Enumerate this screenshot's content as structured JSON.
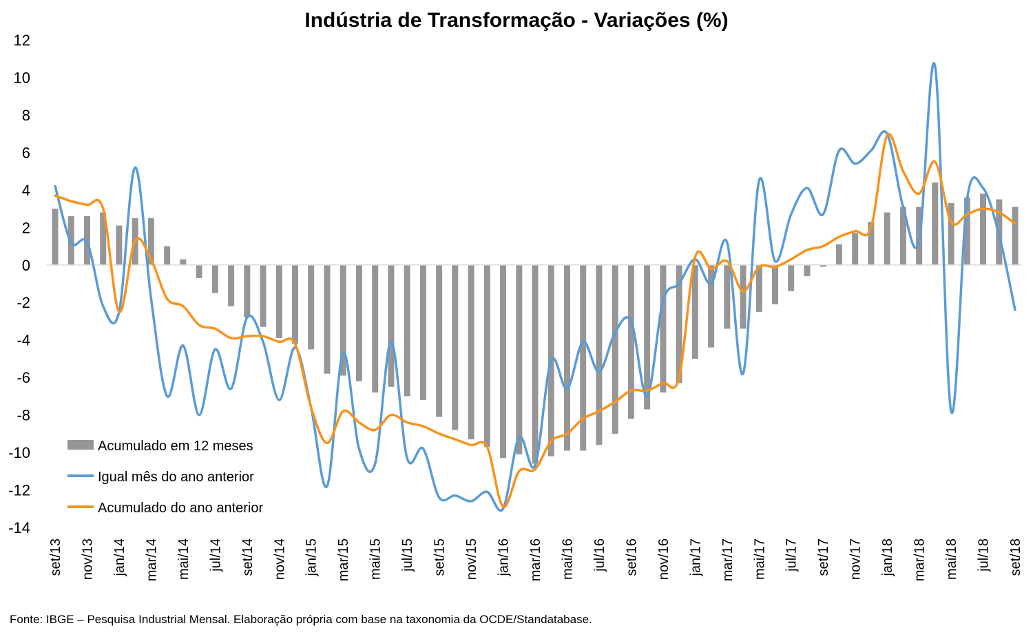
{
  "chart_data": {
    "type": "bar",
    "title": "Indústria de Transformação - Variações (%)",
    "xlabel": "",
    "ylabel": "",
    "ylim": [
      -14,
      12
    ],
    "yticks": [
      12,
      10,
      8,
      6,
      4,
      2,
      0,
      -2,
      -4,
      -6,
      -8,
      -10,
      -12,
      -14
    ],
    "grid": false,
    "legend_position": "bottom-left",
    "x": [
      "set/13",
      "out/13",
      "nov/13",
      "dez/13",
      "jan/14",
      "fev/14",
      "mar/14",
      "abr/14",
      "mai/14",
      "jun/14",
      "jul/14",
      "ago/14",
      "set/14",
      "out/14",
      "nov/14",
      "dez/14",
      "jan/15",
      "fev/15",
      "mar/15",
      "abr/15",
      "mai/15",
      "jun/15",
      "jul/15",
      "ago/15",
      "set/15",
      "out/15",
      "nov/15",
      "dez/15",
      "jan/16",
      "fev/16",
      "mar/16",
      "abr/16",
      "mai/16",
      "jun/16",
      "jul/16",
      "ago/16",
      "set/16",
      "out/16",
      "nov/16",
      "dez/16",
      "jan/17",
      "fev/17",
      "mar/17",
      "abr/17",
      "mai/17",
      "jun/17",
      "jul/17",
      "ago/17",
      "set/17",
      "out/17",
      "nov/17",
      "dez/17",
      "jan/18",
      "fev/18",
      "mar/18",
      "abr/18",
      "mai/18",
      "jun/18",
      "jul/18",
      "ago/18",
      "set/18"
    ],
    "x_tick_labels": [
      "set/13",
      "nov/13",
      "jan/14",
      "mar/14",
      "mai/14",
      "jul/14",
      "set/14",
      "nov/14",
      "jan/15",
      "mar/15",
      "mai/15",
      "jul/15",
      "set/15",
      "nov/15",
      "jan/16",
      "mar/16",
      "mai/16",
      "jul/16",
      "set/16",
      "nov/16",
      "jan/17",
      "mar/17",
      "mai/17",
      "jul/17",
      "set/17",
      "nov/17",
      "jan/18",
      "mar/18",
      "mai/18",
      "jul/18",
      "set/18"
    ],
    "series": [
      {
        "name": "Acumulado em 12 meses",
        "type": "bar",
        "color": "#969696",
        "values": [
          3.0,
          2.6,
          2.6,
          2.8,
          2.1,
          2.5,
          2.5,
          1.0,
          0.3,
          -0.7,
          -1.5,
          -2.2,
          -2.8,
          -3.3,
          -3.9,
          -4.2,
          -4.5,
          -5.8,
          -5.9,
          -6.2,
          -6.8,
          -6.5,
          -7.0,
          -7.2,
          -8.1,
          -8.8,
          -9.3,
          -9.7,
          -10.3,
          -10.1,
          -10.6,
          -10.2,
          -9.9,
          -9.9,
          -9.6,
          -9.0,
          -8.2,
          -7.7,
          -6.8,
          -6.3,
          -5.0,
          -4.4,
          -3.4,
          -3.4,
          -2.5,
          -2.1,
          -1.4,
          -0.6,
          -0.1,
          1.1,
          1.7,
          2.3,
          2.8,
          3.1,
          3.1,
          4.4,
          3.3,
          3.6,
          3.8,
          3.5,
          3.1
        ]
      },
      {
        "name": "Igual mês do ano anterior",
        "type": "line",
        "color": "#5b9bd5",
        "values": [
          4.2,
          1.2,
          1.2,
          -2.2,
          -2.5,
          5.2,
          -1.8,
          -7.0,
          -4.3,
          -8.0,
          -4.5,
          -6.6,
          -2.8,
          -4.1,
          -7.2,
          -4.4,
          -7.6,
          -11.8,
          -4.7,
          -9.8,
          -10.6,
          -4.1,
          -10.3,
          -9.8,
          -12.4,
          -12.3,
          -12.6,
          -12.1,
          -13.0,
          -9.2,
          -10.7,
          -5.1,
          -6.6,
          -4.1,
          -5.7,
          -3.6,
          -3.0,
          -7.0,
          -1.9,
          -1.0,
          0.3,
          -1.0,
          1.2,
          -5.8,
          4.5,
          0.2,
          2.7,
          4.1,
          2.7,
          6.1,
          5.4,
          6.1,
          7.0,
          3.1,
          1.3,
          10.6,
          -7.8,
          3.5,
          4.1,
          1.6,
          -2.4
        ]
      },
      {
        "name": "Acumulado do ano anterior",
        "type": "line",
        "color": "#f7931e",
        "values": [
          3.7,
          3.4,
          3.2,
          3.0,
          -2.5,
          1.3,
          0.3,
          -1.8,
          -2.2,
          -3.2,
          -3.4,
          -3.9,
          -3.8,
          -3.8,
          -4.1,
          -4.2,
          -7.6,
          -9.5,
          -7.8,
          -8.4,
          -8.8,
          -8.0,
          -8.4,
          -8.6,
          -9.0,
          -9.3,
          -9.6,
          -9.7,
          -12.9,
          -11.0,
          -10.9,
          -9.4,
          -9.0,
          -8.2,
          -7.8,
          -7.3,
          -6.7,
          -6.7,
          -6.3,
          -6.0,
          0.4,
          -0.2,
          0.2,
          -1.4,
          -0.1,
          -0.1,
          0.3,
          0.8,
          1.0,
          1.5,
          1.8,
          2.0,
          6.9,
          5.0,
          3.8,
          5.5,
          2.3,
          2.7,
          3.0,
          2.8,
          2.2
        ]
      }
    ]
  },
  "source_note": "Fonte: IBGE – Pesquisa Industrial Mensal. Elaboração própria com base na taxonomia da OCDE/Standatabase."
}
